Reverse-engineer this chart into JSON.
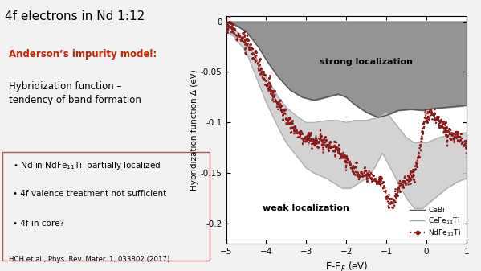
{
  "title": "4f electrons in Nd 1:12",
  "xlabel": "E-E$_F$ (eV)",
  "ylabel": "Hybridization function Δ (eV)",
  "xlim": [
    -5,
    1
  ],
  "ylim": [
    -0.22,
    0.005
  ],
  "yticks": [
    0,
    -0.05,
    -0.1,
    -0.15,
    -0.2
  ],
  "xticks": [
    -5,
    -4,
    -3,
    -2,
    -1,
    0,
    1
  ],
  "strong_localization_label": "strong localization",
  "weak_localization_label": "weak localization",
  "legend_CeBi": "CeBi",
  "legend_CeFe11Ti": "CeFe$_{11}$Ti",
  "legend_NdFe11Ti": "NdFe$_{11}$Ti",
  "bg_color": "#f0f0f0",
  "cebi_color": "#777777",
  "ndfe11ti_color": "#8b1a1a",
  "anderson_text": "Anderson’s impurity model:",
  "anderson_sub": "Hybridization function –\ntendency of band formation",
  "bullet1": "Nd in NdFe$_{11}$Ti  partially localized",
  "bullet2": "4f valence treatment not sufficient",
  "bullet3": "4f in core?",
  "ref_text": "HCH et al., Phys. Rev. Mater. 1, 033802 (2017)"
}
